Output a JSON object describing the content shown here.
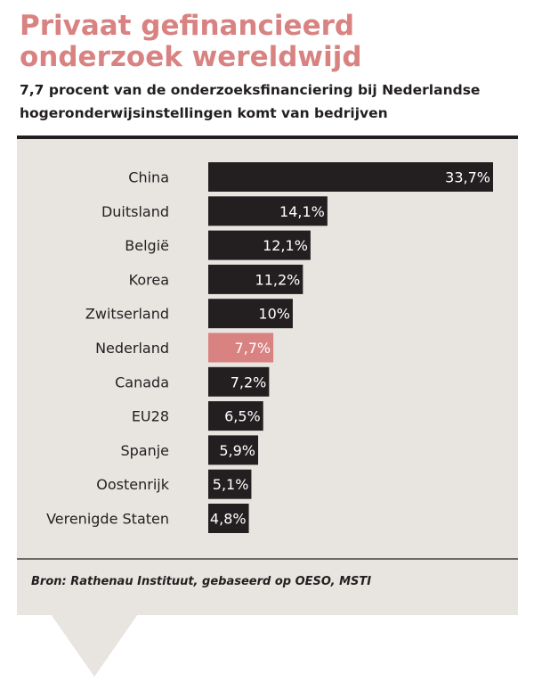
{
  "header": {
    "title": "Privaat gefinancieerd onderzoek wereldwijd",
    "subtitle": "7,7 procent van de onderzoeksfinanciering bij Nederlandse hogeronderwijsinstellingen komt van bedrijven"
  },
  "footer": {
    "source": "Bron: Rathenau Instituut, gebaseerd op OESO, MSTI"
  },
  "colors": {
    "title": "#d98282",
    "bar": "#231f20",
    "highlight_bar": "#d98282",
    "panel": "#e8e4e0"
  },
  "chart_data": {
    "type": "bar",
    "orientation": "horizontal",
    "categories": [
      "China",
      "Duitsland",
      "België",
      "Korea",
      "Zwitserland",
      "Nederland",
      "Canada",
      "EU28",
      "Spanje",
      "Oostenrijk",
      "Verenigde Staten"
    ],
    "values": [
      33.7,
      14.1,
      12.1,
      11.2,
      10,
      7.7,
      7.2,
      6.5,
      5.9,
      5.1,
      4.8
    ],
    "value_labels": [
      "33,7%",
      "14,1%",
      "12,1%",
      "11,2%",
      "10%",
      "7,7%",
      "7,2%",
      "6,5%",
      "5,9%",
      "5,1%",
      "4,8%"
    ],
    "highlight": "Nederland",
    "title": "",
    "xlabel": "",
    "ylabel": "",
    "xlim": [
      0,
      33.7
    ],
    "grid": false,
    "legend": "none"
  }
}
